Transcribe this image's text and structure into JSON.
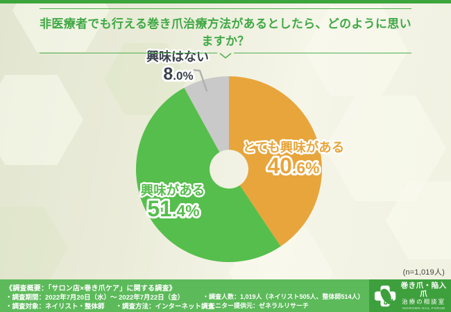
{
  "page": {
    "title": "非医療者でも行える巻き爪治療方法があるとしたら、どのように思いますか？",
    "sample_note": "(n=1,019人)"
  },
  "chart_data": {
    "type": "pie",
    "donut": true,
    "start_angle_deg": 0,
    "direction": "clockwise",
    "title": "非医療者でも行える巻き爪治療方法があるとしたら、どのように思いますか？",
    "sample_size": "n=1,019人",
    "slices": [
      {
        "label": "とても興味がある",
        "value": 40.6,
        "color": "#e8a53c",
        "text_color": "#e8a53c"
      },
      {
        "label": "興味がある",
        "value": 51.4,
        "color": "#56be4c",
        "text_color": "#56be4c"
      },
      {
        "label": "興味はない",
        "value": 8.0,
        "color": "#c9c9c9",
        "text_color": "#3b414d"
      }
    ]
  },
  "footer": {
    "survey_title": "《調査概要：「サロン店×巻き爪ケア」に関する調査》",
    "period": "・調査期間：2022年7月20日（水）～ 2022年7月22日（金）",
    "subjects": "・調査対象：ネイリスト・整体師",
    "method": "・調査方法：インターネット調査",
    "respondents": "・調査人数：1,019人（ネイリスト505人、整体師514人）",
    "provider": "・モニター提供元：ゼネラルリサーチ"
  },
  "logo": {
    "line1": "巻き爪・陥入爪",
    "line2": "治療の相談室",
    "line3": "INGROWN NAIL FORUM"
  }
}
